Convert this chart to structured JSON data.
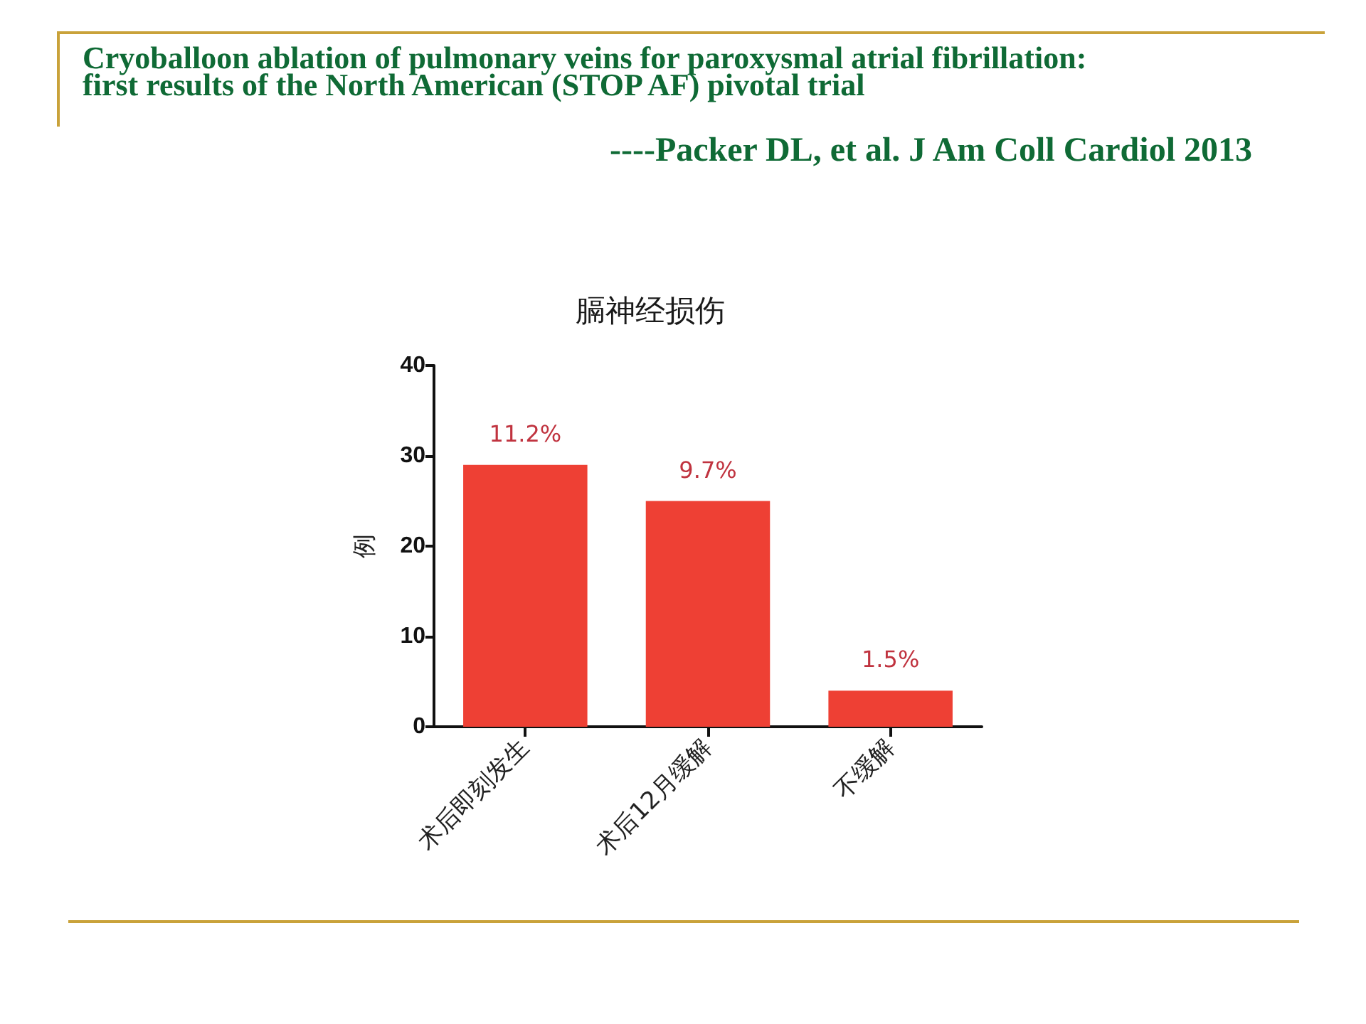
{
  "chart_data": {
    "type": "bar",
    "title": "膈神经损伤",
    "ylabel": "例",
    "categories": [
      "术后即刻发生",
      "术后12月缓解",
      "不缓解"
    ],
    "values": [
      29,
      25,
      4
    ],
    "color": "#ee4034",
    "ylim": [
      0,
      40
    ],
    "yticks": [
      0,
      10,
      20,
      30,
      40
    ],
    "grid": false,
    "annotations": [
      "Cryoballoon ablation of pulmonary veins for paroxysmal atrial fibrillation: first results of the North American (STOP AF) pivotal trial",
      "----Packer DL, et al. J Am Coll Cardiol 2013",
      {
        "text": "11.2%",
        "x": "术后即刻发生",
        "y": 29
      },
      {
        "text": "9.7%",
        "x": "术后12月缓解",
        "y": 25
      },
      {
        "text": "1.5%",
        "x": "不缓解",
        "y": 4
      }
    ]
  }
}
